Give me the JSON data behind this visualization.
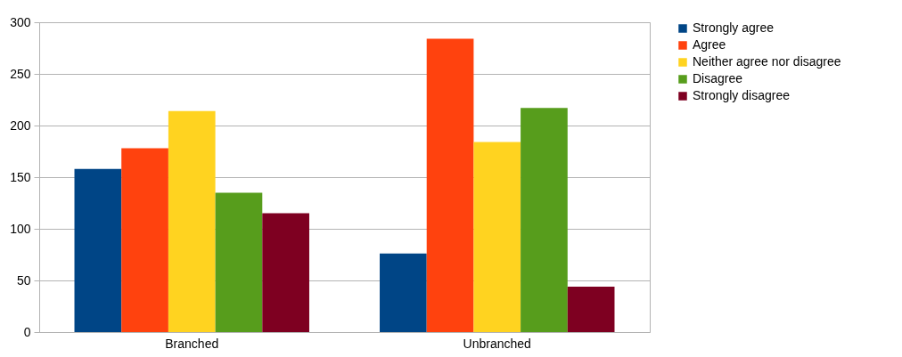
{
  "chart_data": {
    "type": "bar",
    "categories": [
      "Branched",
      "Unbranched"
    ],
    "series": [
      {
        "name": "Strongly agree",
        "color": "#004586",
        "values": [
          158,
          76
        ]
      },
      {
        "name": "Agree",
        "color": "#ff420e",
        "values": [
          178,
          284
        ]
      },
      {
        "name": "Neither agree nor disagree",
        "color": "#ffd320",
        "values": [
          214,
          184
        ]
      },
      {
        "name": "Disagree",
        "color": "#579d1c",
        "values": [
          135,
          217
        ]
      },
      {
        "name": "Strongly disagree",
        "color": "#7e0021",
        "values": [
          115,
          44
        ]
      }
    ],
    "ylim": [
      0,
      300
    ],
    "yticks": [
      0,
      50,
      100,
      150,
      200,
      250,
      300
    ],
    "grid": "y",
    "legend": "right"
  }
}
